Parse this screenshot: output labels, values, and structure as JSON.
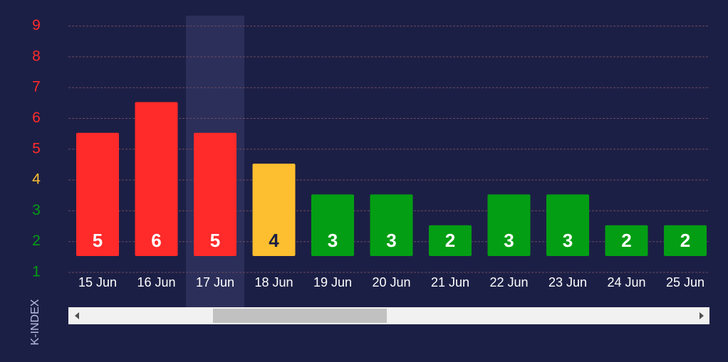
{
  "chart_data": {
    "type": "bar",
    "y_label": "K-INDEX",
    "categories": [
      "15 Jun",
      "16 Jun",
      "17 Jun",
      "18 Jun",
      "19 Jun",
      "20 Jun",
      "21 Jun",
      "22 Jun",
      "23 Jun",
      "24 Jun",
      "25 Jun"
    ],
    "values": [
      5,
      6,
      5,
      4,
      3,
      3,
      2,
      3,
      3,
      2,
      2
    ],
    "colors": [
      "#ff2a2a",
      "#ff2a2a",
      "#ff2a2a",
      "#fdbe2f",
      "#039e14",
      "#039e14",
      "#039e14",
      "#039e14",
      "#039e14",
      "#039e14",
      "#039e14"
    ],
    "ylim": [
      1,
      9
    ],
    "yticks": [
      1,
      2,
      3,
      4,
      5,
      6,
      7,
      8,
      9
    ],
    "ytick_colors": [
      "#039e14",
      "#039e14",
      "#039e14",
      "#fdbe2f",
      "#ff2a2a",
      "#ff2a2a",
      "#ff2a2a",
      "#ff2a2a",
      "#ff2a2a"
    ],
    "grid": true
  }
}
